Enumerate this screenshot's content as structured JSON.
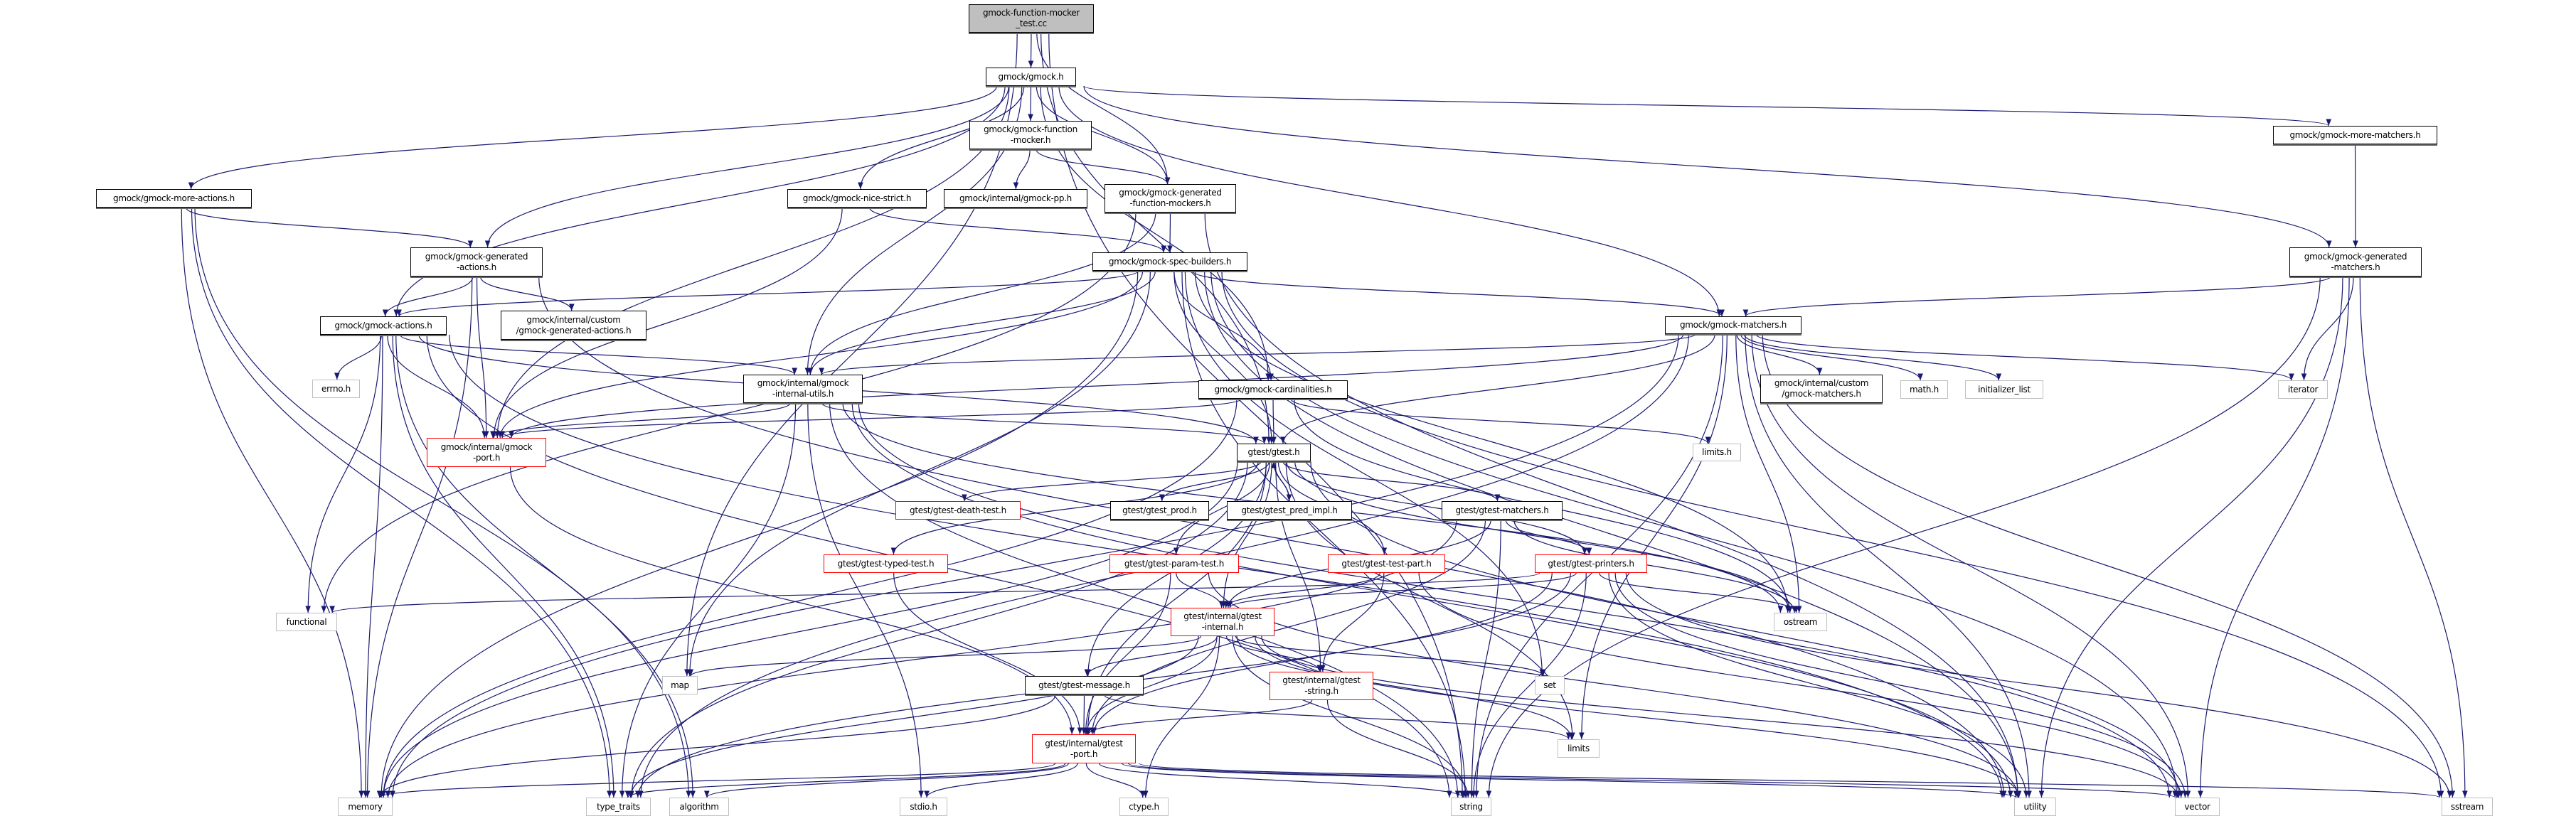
{
  "colors": {
    "edge": "#191970",
    "root_fill": "#bfbfbf",
    "red_border": "#ff0000",
    "system_border": "#bfbfbf"
  },
  "nodes": [
    {
      "id": "root",
      "label": "gmock-function-mocker\n_test.cc",
      "style": "root"
    },
    {
      "id": "gmock_h",
      "label": "gmock/gmock.h",
      "style": "normal"
    },
    {
      "id": "function_mocker",
      "label": "gmock/gmock-function\n-mocker.h",
      "style": "normal"
    },
    {
      "id": "more_actions",
      "label": "gmock/gmock-more-actions.h",
      "style": "normal"
    },
    {
      "id": "nice_strict",
      "label": "gmock/gmock-nice-strict.h",
      "style": "normal"
    },
    {
      "id": "gmock_pp",
      "label": "gmock/internal/gmock-pp.h",
      "style": "normal"
    },
    {
      "id": "gen_fn_mockers",
      "label": "gmock/gmock-generated\n-function-mockers.h",
      "style": "normal"
    },
    {
      "id": "more_matchers",
      "label": "gmock/gmock-more-matchers.h",
      "style": "normal"
    },
    {
      "id": "gen_actions",
      "label": "gmock/gmock-generated\n-actions.h",
      "style": "normal"
    },
    {
      "id": "spec_builders",
      "label": "gmock/gmock-spec-builders.h",
      "style": "normal"
    },
    {
      "id": "gen_matchers",
      "label": "gmock/gmock-generated\n-matchers.h",
      "style": "normal"
    },
    {
      "id": "custom_gen_actions",
      "label": "gmock/internal/custom\n/gmock-generated-actions.h",
      "style": "normal"
    },
    {
      "id": "actions",
      "label": "gmock/gmock-actions.h",
      "style": "normal"
    },
    {
      "id": "matchers",
      "label": "gmock/gmock-matchers.h",
      "style": "normal"
    },
    {
      "id": "errno",
      "label": "errno.h",
      "style": "system"
    },
    {
      "id": "internal_utils",
      "label": "gmock/internal/gmock\n-internal-utils.h",
      "style": "normal"
    },
    {
      "id": "cardinalities",
      "label": "gmock/gmock-cardinalities.h",
      "style": "normal"
    },
    {
      "id": "custom_matchers",
      "label": "gmock/internal/custom\n/gmock-matchers.h",
      "style": "normal"
    },
    {
      "id": "math",
      "label": "math.h",
      "style": "system"
    },
    {
      "id": "initializer_list",
      "label": "initializer_list",
      "style": "system"
    },
    {
      "id": "iterator",
      "label": "iterator",
      "style": "system"
    },
    {
      "id": "gmock_port",
      "label": "gmock/internal/gmock\n-port.h",
      "style": "red"
    },
    {
      "id": "gtest_h",
      "label": "gtest/gtest.h",
      "style": "normal"
    },
    {
      "id": "limits_h",
      "label": "limits.h",
      "style": "system"
    },
    {
      "id": "death_test",
      "label": "gtest/gtest-death-test.h",
      "style": "red"
    },
    {
      "id": "gtest_prod",
      "label": "gtest/gtest_prod.h",
      "style": "normal"
    },
    {
      "id": "pred_impl",
      "label": "gtest/gtest_pred_impl.h",
      "style": "normal"
    },
    {
      "id": "gtest_matchers",
      "label": "gtest/gtest-matchers.h",
      "style": "normal"
    },
    {
      "id": "typed_test",
      "label": "gtest/gtest-typed-test.h",
      "style": "red"
    },
    {
      "id": "param_test",
      "label": "gtest/gtest-param-test.h",
      "style": "red"
    },
    {
      "id": "test_part",
      "label": "gtest/gtest-test-part.h",
      "style": "red"
    },
    {
      "id": "printers",
      "label": "gtest/gtest-printers.h",
      "style": "red"
    },
    {
      "id": "functional",
      "label": "functional",
      "style": "system"
    },
    {
      "id": "ostream",
      "label": "ostream",
      "style": "system"
    },
    {
      "id": "gtest_internal",
      "label": "gtest/internal/gtest\n-internal.h",
      "style": "red"
    },
    {
      "id": "map",
      "label": "map",
      "style": "system"
    },
    {
      "id": "message",
      "label": "gtest/gtest-message.h",
      "style": "normal"
    },
    {
      "id": "gtest_string",
      "label": "gtest/internal/gtest\n-string.h",
      "style": "red"
    },
    {
      "id": "set",
      "label": "set",
      "style": "system"
    },
    {
      "id": "gtest_port",
      "label": "gtest/internal/gtest\n-port.h",
      "style": "red"
    },
    {
      "id": "limits",
      "label": "limits",
      "style": "system"
    },
    {
      "id": "memory",
      "label": "memory",
      "style": "system"
    },
    {
      "id": "type_traits",
      "label": "type_traits",
      "style": "system"
    },
    {
      "id": "algorithm",
      "label": "algorithm",
      "style": "system"
    },
    {
      "id": "stdio",
      "label": "stdio.h",
      "style": "system"
    },
    {
      "id": "ctype",
      "label": "ctype.h",
      "style": "system"
    },
    {
      "id": "string",
      "label": "string",
      "style": "system"
    },
    {
      "id": "utility",
      "label": "utility",
      "style": "system"
    },
    {
      "id": "vector",
      "label": "vector",
      "style": "system"
    },
    {
      "id": "sstream",
      "label": "sstream",
      "style": "system"
    }
  ],
  "edges": [
    [
      "root",
      "gmock_h"
    ],
    [
      "root",
      "gen_fn_mockers"
    ],
    [
      "root",
      "gtest_h"
    ],
    [
      "root",
      "map"
    ],
    [
      "root",
      "string"
    ],
    [
      "gmock_h",
      "more_actions"
    ],
    [
      "gmock_h",
      "gen_actions"
    ],
    [
      "gmock_h",
      "actions"
    ],
    [
      "gmock_h",
      "internal_utils"
    ],
    [
      "gmock_h",
      "nice_strict"
    ],
    [
      "gmock_h",
      "function_mocker"
    ],
    [
      "gmock_h",
      "gen_fn_mockers"
    ],
    [
      "gmock_h",
      "cardinalities"
    ],
    [
      "gmock_h",
      "matchers"
    ],
    [
      "gmock_h",
      "more_matchers"
    ],
    [
      "gmock_h",
      "gen_matchers"
    ],
    [
      "gmock_h",
      "gmock_port"
    ],
    [
      "function_mocker",
      "gmock_pp"
    ],
    [
      "function_mocker",
      "gen_fn_mockers"
    ],
    [
      "gen_fn_mockers",
      "spec_builders"
    ],
    [
      "gen_fn_mockers",
      "internal_utils"
    ],
    [
      "gen_fn_mockers",
      "functional"
    ],
    [
      "gen_fn_mockers",
      "utility"
    ],
    [
      "more_actions",
      "gen_actions"
    ],
    [
      "more_actions",
      "memory"
    ],
    [
      "more_actions",
      "algorithm"
    ],
    [
      "more_actions",
      "type_traits"
    ],
    [
      "nice_strict",
      "spec_builders"
    ],
    [
      "nice_strict",
      "gmock_port"
    ],
    [
      "gen_actions",
      "actions"
    ],
    [
      "gen_actions",
      "custom_gen_actions"
    ],
    [
      "gen_actions",
      "gmock_port"
    ],
    [
      "gen_actions",
      "memory"
    ],
    [
      "gen_actions",
      "utility"
    ],
    [
      "spec_builders",
      "actions"
    ],
    [
      "spec_builders",
      "internal_utils"
    ],
    [
      "spec_builders",
      "gmock_port"
    ],
    [
      "spec_builders",
      "cardinalities"
    ],
    [
      "spec_builders",
      "matchers"
    ],
    [
      "spec_builders",
      "gtest_h"
    ],
    [
      "spec_builders",
      "map"
    ],
    [
      "spec_builders",
      "memory"
    ],
    [
      "spec_builders",
      "ostream"
    ],
    [
      "spec_builders",
      "set"
    ],
    [
      "spec_builders",
      "sstream"
    ],
    [
      "spec_builders",
      "string"
    ],
    [
      "spec_builders",
      "vector"
    ],
    [
      "spec_builders",
      "utility"
    ],
    [
      "actions",
      "errno"
    ],
    [
      "actions",
      "internal_utils"
    ],
    [
      "actions",
      "gmock_port"
    ],
    [
      "actions",
      "functional"
    ],
    [
      "actions",
      "memory"
    ],
    [
      "actions",
      "type_traits"
    ],
    [
      "actions",
      "algorithm"
    ],
    [
      "actions",
      "string"
    ],
    [
      "actions",
      "utility"
    ],
    [
      "actions",
      "gtest_h"
    ],
    [
      "internal_utils",
      "gmock_port"
    ],
    [
      "internal_utils",
      "gtest_h"
    ],
    [
      "internal_utils",
      "ostream"
    ],
    [
      "internal_utils",
      "string"
    ],
    [
      "internal_utils",
      "type_traits"
    ],
    [
      "internal_utils",
      "utility"
    ],
    [
      "internal_utils",
      "vector"
    ],
    [
      "internal_utils",
      "stdio"
    ],
    [
      "cardinalities",
      "gmock_port"
    ],
    [
      "cardinalities",
      "gtest_h"
    ],
    [
      "cardinalities",
      "limits_h"
    ],
    [
      "cardinalities",
      "memory"
    ],
    [
      "cardinalities",
      "ostream"
    ],
    [
      "matchers",
      "gmock_port"
    ],
    [
      "matchers",
      "internal_utils"
    ],
    [
      "matchers",
      "gtest_h"
    ],
    [
      "matchers",
      "custom_matchers"
    ],
    [
      "matchers",
      "math"
    ],
    [
      "matchers",
      "initializer_list"
    ],
    [
      "matchers",
      "iterator"
    ],
    [
      "matchers",
      "limits"
    ],
    [
      "matchers",
      "memory"
    ],
    [
      "matchers",
      "ostream"
    ],
    [
      "matchers",
      "sstream"
    ],
    [
      "matchers",
      "string"
    ],
    [
      "matchers",
      "type_traits"
    ],
    [
      "matchers",
      "utility"
    ],
    [
      "matchers",
      "vector"
    ],
    [
      "gen_matchers",
      "matchers"
    ],
    [
      "gen_matchers",
      "iterator"
    ],
    [
      "gen_matchers",
      "sstream"
    ],
    [
      "gen_matchers",
      "string"
    ],
    [
      "gen_matchers",
      "utility"
    ],
    [
      "gen_matchers",
      "vector"
    ],
    [
      "more_matchers",
      "gen_matchers"
    ],
    [
      "gmock_port",
      "gtest_port"
    ],
    [
      "gtest_h",
      "death_test"
    ],
    [
      "gtest_h",
      "gtest_prod"
    ],
    [
      "gtest_h",
      "pred_impl"
    ],
    [
      "gtest_h",
      "gtest_matchers"
    ],
    [
      "gtest_h",
      "typed_test"
    ],
    [
      "gtest_h",
      "param_test"
    ],
    [
      "gtest_h",
      "test_part"
    ],
    [
      "gtest_h",
      "printers"
    ],
    [
      "gtest_h",
      "gtest_internal"
    ],
    [
      "gtest_h",
      "gtest_string"
    ],
    [
      "gtest_h",
      "message"
    ],
    [
      "gtest_h",
      "gtest_port"
    ],
    [
      "gtest_h",
      "ostream"
    ],
    [
      "gtest_h",
      "limits"
    ],
    [
      "gtest_h",
      "memory"
    ],
    [
      "gtest_h",
      "type_traits"
    ],
    [
      "gtest_h",
      "vector"
    ],
    [
      "pred_impl",
      "gtest_h"
    ],
    [
      "gtest_matchers",
      "printers"
    ],
    [
      "gtest_matchers",
      "gtest_internal"
    ],
    [
      "gtest_matchers",
      "gtest_port"
    ],
    [
      "gtest_matchers",
      "memory"
    ],
    [
      "gtest_matchers",
      "ostream"
    ],
    [
      "gtest_matchers",
      "string"
    ],
    [
      "typed_test",
      "gtest_port"
    ],
    [
      "param_test",
      "gtest_internal"
    ],
    [
      "param_test",
      "gtest_port"
    ],
    [
      "param_test",
      "utility"
    ],
    [
      "test_part",
      "gtest_internal"
    ],
    [
      "test_part",
      "gtest_string"
    ],
    [
      "test_part",
      "vector"
    ],
    [
      "printers",
      "gtest_internal"
    ],
    [
      "printers",
      "gtest_port"
    ],
    [
      "printers",
      "functional"
    ],
    [
      "printers",
      "ostream"
    ],
    [
      "printers",
      "sstream"
    ],
    [
      "printers",
      "string"
    ],
    [
      "printers",
      "utility"
    ],
    [
      "printers",
      "vector"
    ],
    [
      "printers",
      "type_traits"
    ],
    [
      "gtest_internal",
      "message"
    ],
    [
      "gtest_internal",
      "gtest_port"
    ],
    [
      "gtest_internal",
      "gtest_string"
    ],
    [
      "gtest_internal",
      "map"
    ],
    [
      "gtest_internal",
      "set"
    ],
    [
      "gtest_internal",
      "string"
    ],
    [
      "gtest_internal",
      "vector"
    ],
    [
      "gtest_internal",
      "ctype"
    ],
    [
      "gtest_internal",
      "limits"
    ],
    [
      "gtest_internal",
      "type_traits"
    ],
    [
      "gtest_internal",
      "utility"
    ],
    [
      "message",
      "gtest_port"
    ],
    [
      "message",
      "limits"
    ],
    [
      "message",
      "memory"
    ],
    [
      "gtest_string",
      "gtest_port"
    ],
    [
      "gtest_string",
      "string"
    ],
    [
      "gtest_port",
      "memory"
    ],
    [
      "gtest_port",
      "type_traits"
    ],
    [
      "gtest_port",
      "algorithm"
    ],
    [
      "gtest_port",
      "stdio"
    ],
    [
      "gtest_port",
      "ctype"
    ],
    [
      "gtest_port",
      "string"
    ],
    [
      "gtest_port",
      "utility"
    ],
    [
      "gtest_port",
      "vector"
    ],
    [
      "gtest_port",
      "sstream"
    ]
  ]
}
